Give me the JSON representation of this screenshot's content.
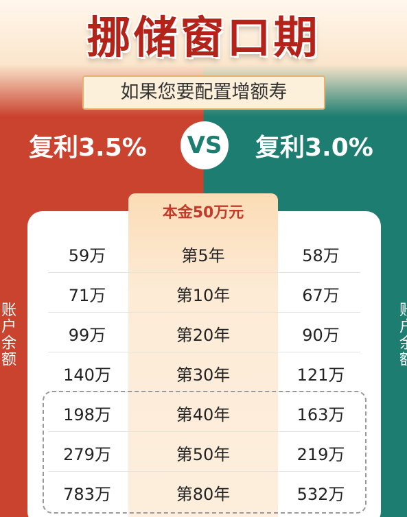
{
  "header": {
    "title": "挪储窗口期",
    "subtitle": "如果您要配置增额寿"
  },
  "comparison": {
    "left": "复利3.5%",
    "vs": "VS",
    "right": "复利3.0%"
  },
  "side_labels": {
    "left": "账户余额",
    "right": "账户余额"
  },
  "table": {
    "header": "本金50万元",
    "rows": [
      [
        "59万",
        "第5年",
        "58万"
      ],
      [
        "71万",
        "第10年",
        "67万"
      ],
      [
        "99万",
        "第20年",
        "90万"
      ],
      [
        "140万",
        "第30年",
        "121万"
      ],
      [
        "198万",
        "第40年",
        "163万"
      ],
      [
        "279万",
        "第50年",
        "219万"
      ],
      [
        "783万",
        "第80年",
        "532万"
      ]
    ]
  }
}
